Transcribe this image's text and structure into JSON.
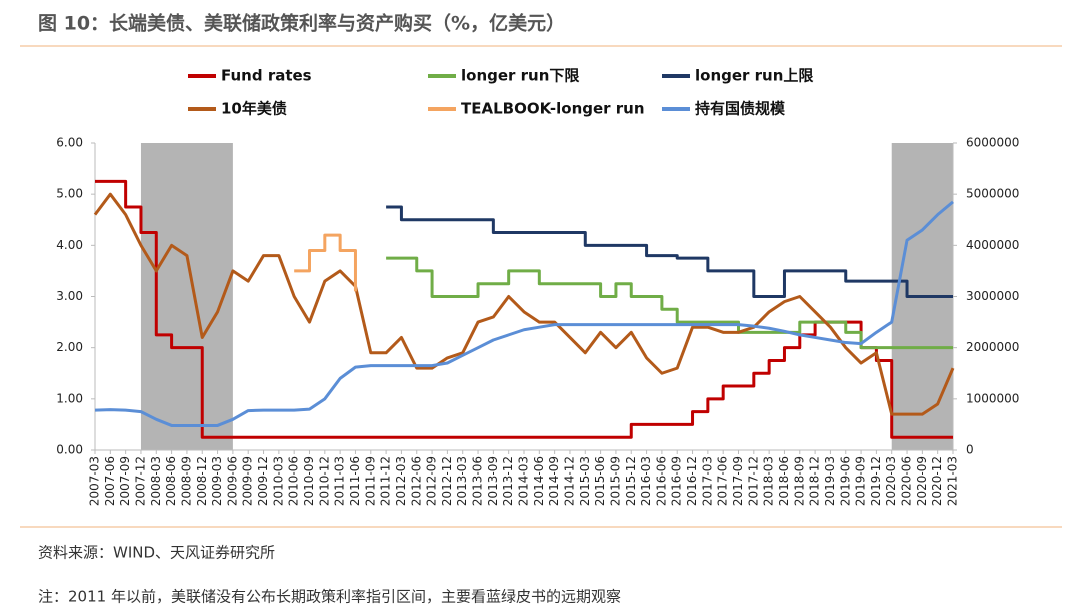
{
  "header": {
    "title": "图 10：长端美债、美联储政策利率与资产购买（%，亿美元）"
  },
  "chart_data": {
    "type": "line",
    "categories": [
      "2007-03",
      "2007-06",
      "2007-09",
      "2007-12",
      "2008-03",
      "2008-06",
      "2008-09",
      "2008-12",
      "2009-03",
      "2009-06",
      "2009-09",
      "2009-12",
      "2010-03",
      "2010-06",
      "2010-09",
      "2010-12",
      "2011-03",
      "2011-06",
      "2011-09",
      "2011-12",
      "2012-03",
      "2012-06",
      "2012-09",
      "2012-12",
      "2013-03",
      "2013-06",
      "2013-09",
      "2013-12",
      "2014-03",
      "2014-06",
      "2014-09",
      "2014-12",
      "2015-03",
      "2015-06",
      "2015-09",
      "2015-12",
      "2016-03",
      "2016-06",
      "2016-09",
      "2016-12",
      "2017-03",
      "2017-06",
      "2017-09",
      "2017-12",
      "2018-03",
      "2018-06",
      "2018-09",
      "2018-12",
      "2019-03",
      "2019-06",
      "2019-09",
      "2019-12",
      "2020-03",
      "2020-06",
      "2020-09",
      "2020-12",
      "2021-03"
    ],
    "series": [
      {
        "name": "Fund rates",
        "color": "#c00000",
        "step": true,
        "values": [
          5.25,
          5.25,
          4.75,
          4.25,
          2.25,
          2.0,
          2.0,
          0.25,
          0.25,
          0.25,
          0.25,
          0.25,
          0.25,
          0.25,
          0.25,
          0.25,
          0.25,
          0.25,
          0.25,
          0.25,
          0.25,
          0.25,
          0.25,
          0.25,
          0.25,
          0.25,
          0.25,
          0.25,
          0.25,
          0.25,
          0.25,
          0.25,
          0.25,
          0.25,
          0.25,
          0.5,
          0.5,
          0.5,
          0.5,
          0.75,
          1.0,
          1.25,
          1.25,
          1.5,
          1.75,
          2.0,
          2.25,
          2.5,
          2.5,
          2.5,
          2.0,
          1.75,
          0.25,
          0.25,
          0.25,
          0.25,
          0.25
        ]
      },
      {
        "name": "longer run下限",
        "color": "#70ad47",
        "step": true,
        "values": [
          null,
          null,
          null,
          null,
          null,
          null,
          null,
          null,
          null,
          null,
          null,
          null,
          null,
          null,
          null,
          null,
          null,
          null,
          null,
          3.75,
          3.75,
          3.5,
          3.0,
          3.0,
          3.0,
          3.25,
          3.25,
          3.5,
          3.5,
          3.25,
          3.25,
          3.25,
          3.25,
          3.0,
          3.25,
          3.0,
          3.0,
          2.75,
          2.5,
          2.5,
          2.5,
          2.5,
          2.3,
          2.3,
          2.3,
          2.3,
          2.5,
          2.5,
          2.5,
          2.3,
          2.0,
          2.0,
          2.0,
          2.0,
          2.0,
          2.0,
          2.0
        ]
      },
      {
        "name": "longer run上限",
        "color": "#1f3864",
        "step": true,
        "values": [
          null,
          null,
          null,
          null,
          null,
          null,
          null,
          null,
          null,
          null,
          null,
          null,
          null,
          null,
          null,
          null,
          null,
          null,
          null,
          4.75,
          4.5,
          4.5,
          4.5,
          4.5,
          4.5,
          4.5,
          4.25,
          4.25,
          4.25,
          4.25,
          4.25,
          4.25,
          4.0,
          4.0,
          4.0,
          4.0,
          3.8,
          3.8,
          3.75,
          3.75,
          3.5,
          3.5,
          3.5,
          3.0,
          3.0,
          3.5,
          3.5,
          3.5,
          3.5,
          3.3,
          3.3,
          3.3,
          3.3,
          3.0,
          3.0,
          3.0,
          3.0
        ]
      },
      {
        "name": "10年美债",
        "color": "#b35a1a",
        "step": false,
        "values": [
          4.6,
          5.0,
          4.6,
          4.0,
          3.5,
          4.0,
          3.8,
          2.2,
          2.7,
          3.5,
          3.3,
          3.8,
          3.8,
          3.0,
          2.5,
          3.3,
          3.5,
          3.2,
          1.9,
          1.9,
          2.2,
          1.6,
          1.6,
          1.8,
          1.9,
          2.5,
          2.6,
          3.0,
          2.7,
          2.5,
          2.5,
          2.2,
          1.9,
          2.3,
          2.0,
          2.3,
          1.8,
          1.5,
          1.6,
          2.4,
          2.4,
          2.3,
          2.3,
          2.4,
          2.7,
          2.9,
          3.0,
          2.7,
          2.4,
          2.0,
          1.7,
          1.9,
          0.7,
          0.7,
          0.7,
          0.9,
          1.6
        ]
      },
      {
        "name": "TEALBOOK-longer run",
        "color": "#f4a460",
        "step": true,
        "values": [
          null,
          null,
          null,
          null,
          null,
          null,
          null,
          null,
          null,
          null,
          null,
          null,
          null,
          3.5,
          3.9,
          4.2,
          3.9,
          3.1,
          null,
          null,
          null,
          null,
          null,
          null,
          null,
          null,
          null,
          null,
          null,
          null,
          null,
          null,
          null,
          null,
          null,
          null,
          null,
          null,
          null,
          null,
          null,
          null,
          null,
          null,
          null,
          null,
          null,
          null,
          null,
          null,
          null,
          null,
          null,
          null,
          null,
          null,
          null
        ]
      },
      {
        "name": "持有国债规模",
        "color": "#5b8ed6",
        "step": false,
        "axis": "y2",
        "values": [
          780000,
          790000,
          780000,
          750000,
          600000,
          480000,
          480000,
          480000,
          480000,
          600000,
          770000,
          780000,
          780000,
          780000,
          800000,
          1000000,
          1400000,
          1620000,
          1650000,
          1650000,
          1650000,
          1650000,
          1650000,
          1700000,
          1850000,
          2000000,
          2150000,
          2250000,
          2350000,
          2400000,
          2450000,
          2450000,
          2450000,
          2450000,
          2450000,
          2450000,
          2450000,
          2450000,
          2450000,
          2450000,
          2450000,
          2450000,
          2450000,
          2420000,
          2380000,
          2320000,
          2250000,
          2200000,
          2150000,
          2100000,
          2080000,
          2300000,
          2500000,
          4100000,
          4300000,
          4600000,
          4850000
        ]
      }
    ],
    "ylim": [
      0,
      6
    ],
    "yticks": [
      {
        "value": 0,
        "label": "0.00"
      },
      {
        "value": 1,
        "label": "1.00"
      },
      {
        "value": 2,
        "label": "2.00"
      },
      {
        "value": 3,
        "label": "3.00"
      },
      {
        "value": 4,
        "label": "4.00"
      },
      {
        "value": 5,
        "label": "5.00"
      },
      {
        "value": 6,
        "label": "6.00"
      }
    ],
    "y2lim": [
      0,
      6000000
    ],
    "y2ticks": [
      0,
      1000000,
      2000000,
      3000000,
      4000000,
      5000000,
      6000000
    ],
    "shaded_periods": [
      {
        "start": "2007-12",
        "end": "2009-06",
        "color": "#b4b4b4"
      },
      {
        "start": "2020-03",
        "end": "2021-03",
        "color": "#b4b4b4"
      }
    ]
  },
  "footer": {
    "source": "资料来源：WIND、天风证券研究所",
    "note": "注：2011 年以前，美联储没有公布长期政策利率指引区间，主要看蓝绿皮书的远期观察"
  }
}
